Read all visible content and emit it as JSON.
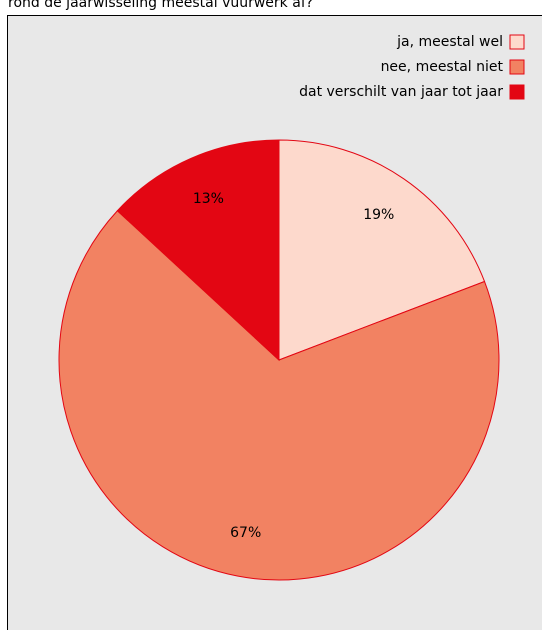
{
  "chart_data": {
    "type": "pie",
    "title": "rond de jaarwisseling meestal vuurwerk af?",
    "categories": [
      "ja, meestal wel",
      "nee, meestal niet",
      "dat verschilt van jaar tot jaar"
    ],
    "values": [
      19,
      67,
      13
    ],
    "value_labels": [
      "19%",
      "67%",
      "13%"
    ],
    "colors": [
      "#fdd9cc",
      "#f28262",
      "#e30613"
    ],
    "legend": "top-right"
  }
}
